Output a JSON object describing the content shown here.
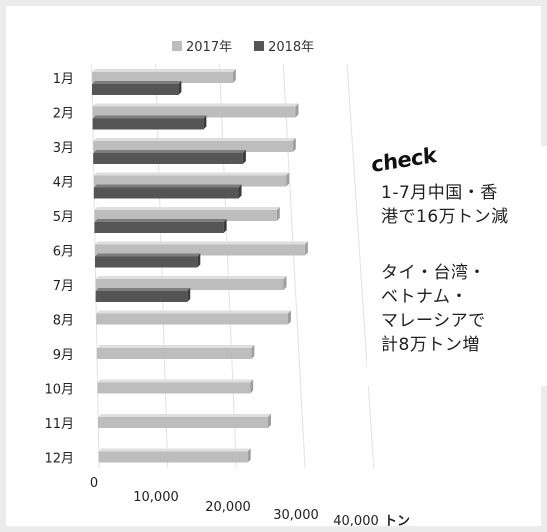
{
  "chart_data": {
    "type": "bar",
    "orientation": "horizontal",
    "categories": [
      "1月",
      "2月",
      "3月",
      "4月",
      "5月",
      "6月",
      "7月",
      "8月",
      "9月",
      "10月",
      "11月",
      "12月"
    ],
    "series": [
      {
        "name": "2017年",
        "color": "#bdbdbd",
        "values": [
          22000,
          31500,
          30800,
          29500,
          27800,
          31800,
          28300,
          28700,
          23000,
          22600,
          25000,
          21800
        ]
      },
      {
        "name": "2018年",
        "color": "#555555",
        "values": [
          13500,
          17200,
          23100,
          22200,
          19700,
          15500,
          13800,
          null,
          null,
          null,
          null,
          null
        ]
      }
    ],
    "xlim": [
      0,
      40000
    ],
    "xticks": [
      "0",
      "10,000",
      "20,000",
      "30,000",
      "40,000"
    ],
    "xunit": "トン",
    "legend_position": "top-center",
    "grid": true
  },
  "callout": {
    "badge": "check",
    "lines": [
      "1-7月中国・香",
      "港で16万トン減",
      "",
      "タイ・台湾・",
      "ベトナム・",
      "マレーシアで",
      "計8万トン増"
    ]
  }
}
